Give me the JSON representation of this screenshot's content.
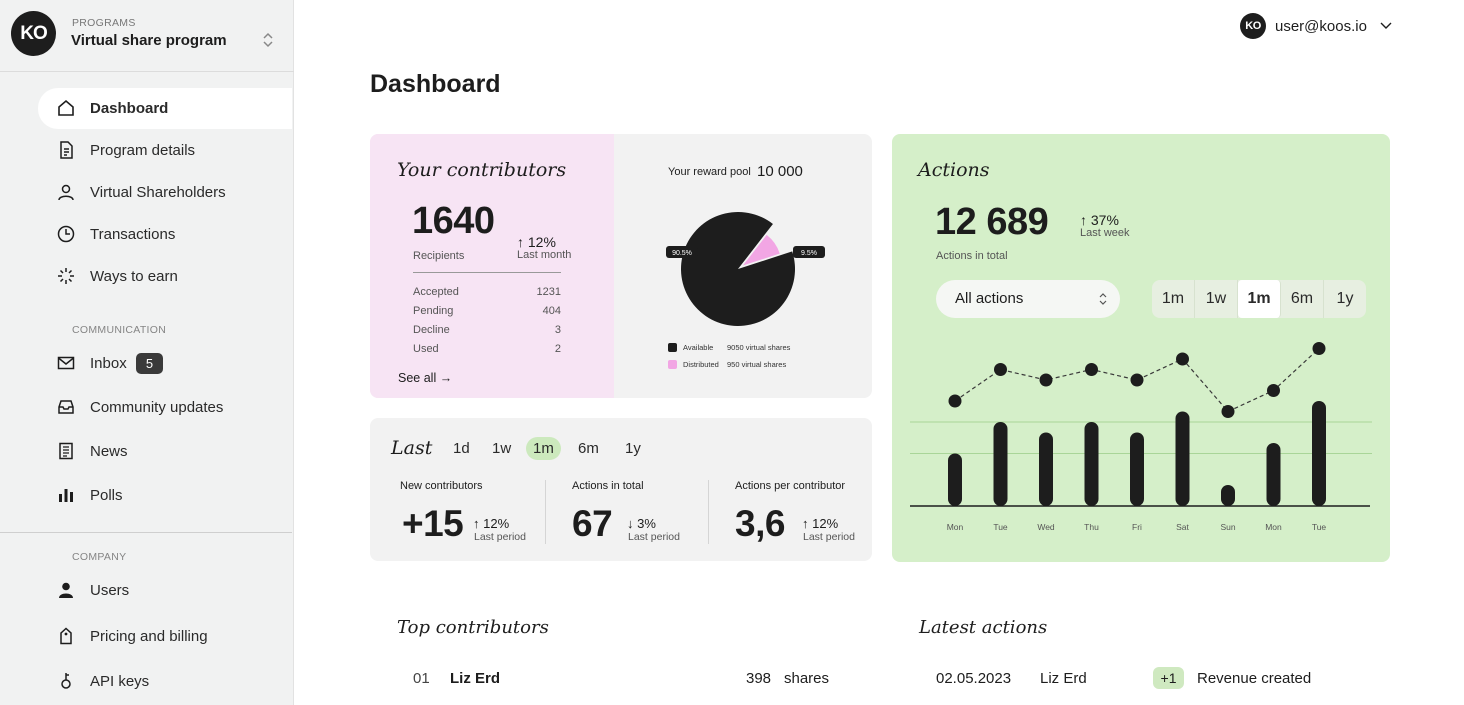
{
  "sidebar": {
    "logo": "KO",
    "programs_label": "PROGRAMS",
    "program_name": "Virtual share program",
    "items": [
      {
        "label": "Dashboard"
      },
      {
        "label": "Program details"
      },
      {
        "label": "Virtual Shareholders"
      },
      {
        "label": "Transactions"
      },
      {
        "label": "Ways to earn"
      }
    ],
    "communication_label": "COMMUNICATION",
    "communication_items": [
      {
        "label": "Inbox",
        "badge": "5"
      },
      {
        "label": "Community updates"
      },
      {
        "label": "News"
      },
      {
        "label": "Polls"
      }
    ],
    "company_label": "COMPANY",
    "company_items": [
      {
        "label": "Users"
      },
      {
        "label": "Pricing and billing"
      },
      {
        "label": "API keys"
      }
    ]
  },
  "header": {
    "avatar": "KO",
    "email": "user@koos.io",
    "title": "Dashboard"
  },
  "contributors": {
    "title": "Your contributors",
    "total": "1640",
    "total_label": "Recipients",
    "delta": "↑ 12%",
    "delta_label": "Last month",
    "rows": [
      {
        "label": "Accepted",
        "value": "1231"
      },
      {
        "label": "Pending",
        "value": "404"
      },
      {
        "label": "Decline",
        "value": "3"
      },
      {
        "label": "Used",
        "value": "2"
      }
    ],
    "see_all": "See all →",
    "pool_label": "Your reward pool",
    "pool_value": "10 000",
    "pie_label_available": "90.5%",
    "pie_label_distributed": "9.5%",
    "legend": [
      {
        "name": "Available",
        "value": "9050 virtual shares",
        "color": "#1d1d1d"
      },
      {
        "name": "Distributed",
        "value": "950 virtual shares",
        "color": "#f2a6e4"
      }
    ]
  },
  "pie_data": {
    "type": "pie",
    "slices": [
      {
        "name": "Available",
        "value": 90.5
      },
      {
        "name": "Distributed",
        "value": 9.5
      }
    ]
  },
  "last": {
    "label": "Last",
    "periods": [
      "1d",
      "1w",
      "1m",
      "6m",
      "1y"
    ],
    "selected": "1m",
    "kpis": [
      {
        "label": "New contributors",
        "value": "+15",
        "delta": "↑ 12%",
        "sub": "Last period"
      },
      {
        "label": "Actions in total",
        "value": "67",
        "delta": "↓ 3%",
        "sub": "Last period"
      },
      {
        "label": "Actions per contributor",
        "value": "3,6",
        "delta": "↑ 12%",
        "sub": "Last period"
      }
    ]
  },
  "actions": {
    "title": "Actions",
    "total": "12 689",
    "total_label": "Actions in total",
    "delta": "↑ 37%",
    "delta_label": "Last week",
    "filter": "All actions",
    "periods": [
      "1m",
      "1w",
      "1m",
      "6m",
      "1y"
    ],
    "selected_index": 2
  },
  "chart_data": {
    "type": "bar",
    "categories": [
      "Mon",
      "Tue",
      "Wed",
      "Thu",
      "Fri",
      "Sat",
      "Sun",
      "Mon",
      "Tue"
    ],
    "series": [
      {
        "values": [
          5,
          8,
          7,
          8,
          7,
          9,
          2,
          6,
          10
        ]
      },
      {
        "values": [
          10,
          13,
          12,
          13,
          12,
          14,
          9,
          11,
          15
        ],
        "style": "dashed-line"
      }
    ],
    "ylim": [
      0,
      16
    ],
    "grid": true
  },
  "top_contributors": {
    "title": "Top contributors",
    "rows": [
      {
        "rank": "01",
        "name": "Liz Erd",
        "shares": "398",
        "unit": "shares"
      }
    ]
  },
  "latest_actions": {
    "title": "Latest actions",
    "rows": [
      {
        "date": "02.05.2023",
        "name": "Liz Erd",
        "badge": "+1",
        "action": "Revenue created"
      }
    ]
  }
}
